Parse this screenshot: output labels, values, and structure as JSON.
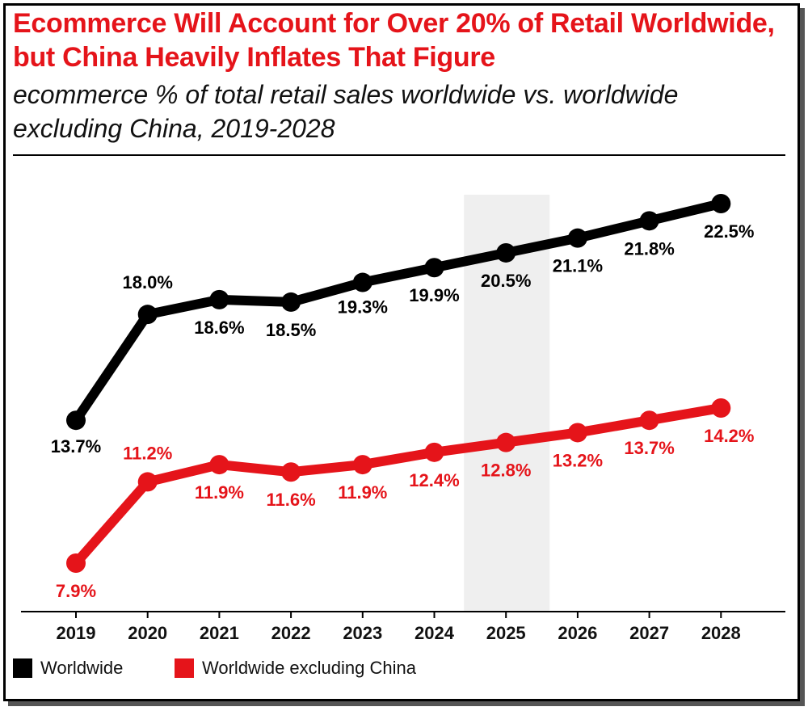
{
  "title": "Ecommerce Will Account for Over 20% of Retail Worldwide, but China Heavily Inflates That Figure",
  "subtitle": "ecommerce % of total retail sales worldwide vs. worldwide excluding China, 2019-2028",
  "chart_data": {
    "type": "line",
    "title": "Ecommerce Will Account for Over 20% of Retail Worldwide, but China Heavily Inflates That Figure",
    "subtitle": "ecommerce % of total retail sales worldwide vs. worldwide excluding China, 2019-2028",
    "x": [
      "2019",
      "2020",
      "2021",
      "2022",
      "2023",
      "2024",
      "2025",
      "2026",
      "2027",
      "2028"
    ],
    "highlight_category": "2025",
    "series": [
      {
        "name": "Worldwide",
        "color": "#000000",
        "values": [
          13.7,
          18.0,
          18.6,
          18.5,
          19.3,
          19.9,
          20.5,
          21.1,
          21.8,
          22.5
        ],
        "labels": [
          "13.7%",
          "18.0%",
          "18.6%",
          "18.5%",
          "19.3%",
          "19.9%",
          "20.5%",
          "21.1%",
          "21.8%",
          "22.5%"
        ]
      },
      {
        "name": "Worldwide excluding China",
        "color": "#e5141a",
        "values": [
          7.9,
          11.2,
          11.9,
          11.6,
          11.9,
          12.4,
          12.8,
          13.2,
          13.7,
          14.2
        ],
        "labels": [
          "7.9%",
          "11.2%",
          "11.9%",
          "11.6%",
          "11.9%",
          "12.4%",
          "12.8%",
          "13.2%",
          "13.7%",
          "14.2%"
        ]
      }
    ],
    "ylim": [
      5,
      24
    ],
    "grid": false,
    "legend_position": "bottom-left"
  }
}
